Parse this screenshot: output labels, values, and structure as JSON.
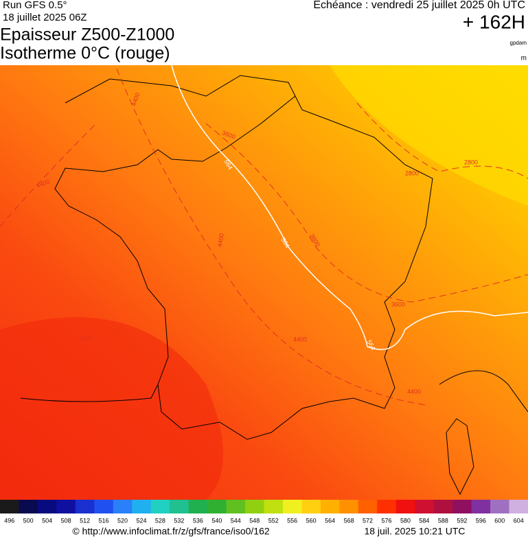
{
  "header": {
    "run": "Run GFS 0.5°",
    "run_date": "18 juillet 2025 06Z",
    "valid": "Echéance : vendredi 25 juillet 2025 0h UTC",
    "lead": "+ 162H",
    "title": "Epaisseur Z500-Z1000",
    "subtitle": "Isotherme 0°C (rouge)",
    "unit_primary": "gpdam",
    "unit_secondary": "m"
  },
  "map": {
    "contour_labels": [
      {
        "text": 4400,
        "color": "#e03020"
      },
      {
        "text": 3600,
        "color": "#e03020"
      },
      {
        "text": 564,
        "color": "#ffffff"
      },
      {
        "text": 2800,
        "color": "#e03020"
      },
      {
        "text": 2800,
        "color": "#e03020"
      },
      {
        "text": 4400,
        "color": "#e03020"
      },
      {
        "text": 4400,
        "color": "#e03020"
      },
      {
        "text": 3600,
        "color": "#e03020"
      },
      {
        "text": 564,
        "color": "#ffffff"
      },
      {
        "text": 3600,
        "color": "#e03020"
      },
      {
        "text": 5200,
        "color": "#e03020"
      },
      {
        "text": 4400,
        "color": "#e03020"
      },
      {
        "text": 564,
        "color": "#ffffff"
      },
      {
        "text": 4400,
        "color": "#e03020"
      }
    ]
  },
  "colorbar": {
    "labels": [
      496,
      500,
      504,
      508,
      512,
      516,
      520,
      524,
      528,
      532,
      536,
      540,
      544,
      548,
      552,
      556,
      560,
      564,
      568,
      572,
      576,
      580,
      584,
      588,
      592,
      596,
      600,
      604
    ],
    "colors": [
      "#1a1a1a",
      "#0a0a50",
      "#0a0a80",
      "#1010a0",
      "#1a30d0",
      "#2050f0",
      "#2a80f8",
      "#20b0f0",
      "#20d0c0",
      "#20c090",
      "#20b050",
      "#30b030",
      "#60c020",
      "#90d010",
      "#c0e010",
      "#f0f020",
      "#ffd010",
      "#ffb000",
      "#ff9000",
      "#ff6000",
      "#ff3000",
      "#f01010",
      "#d01030",
      "#b01040",
      "#901060",
      "#8030a0",
      "#a070c0",
      "#d0b0e0"
    ]
  },
  "footer": {
    "source": "© http://www.infoclimat.fr/z/gfs/france/iso0/162",
    "generated": "18 juil. 2025 10:21 UTC"
  }
}
